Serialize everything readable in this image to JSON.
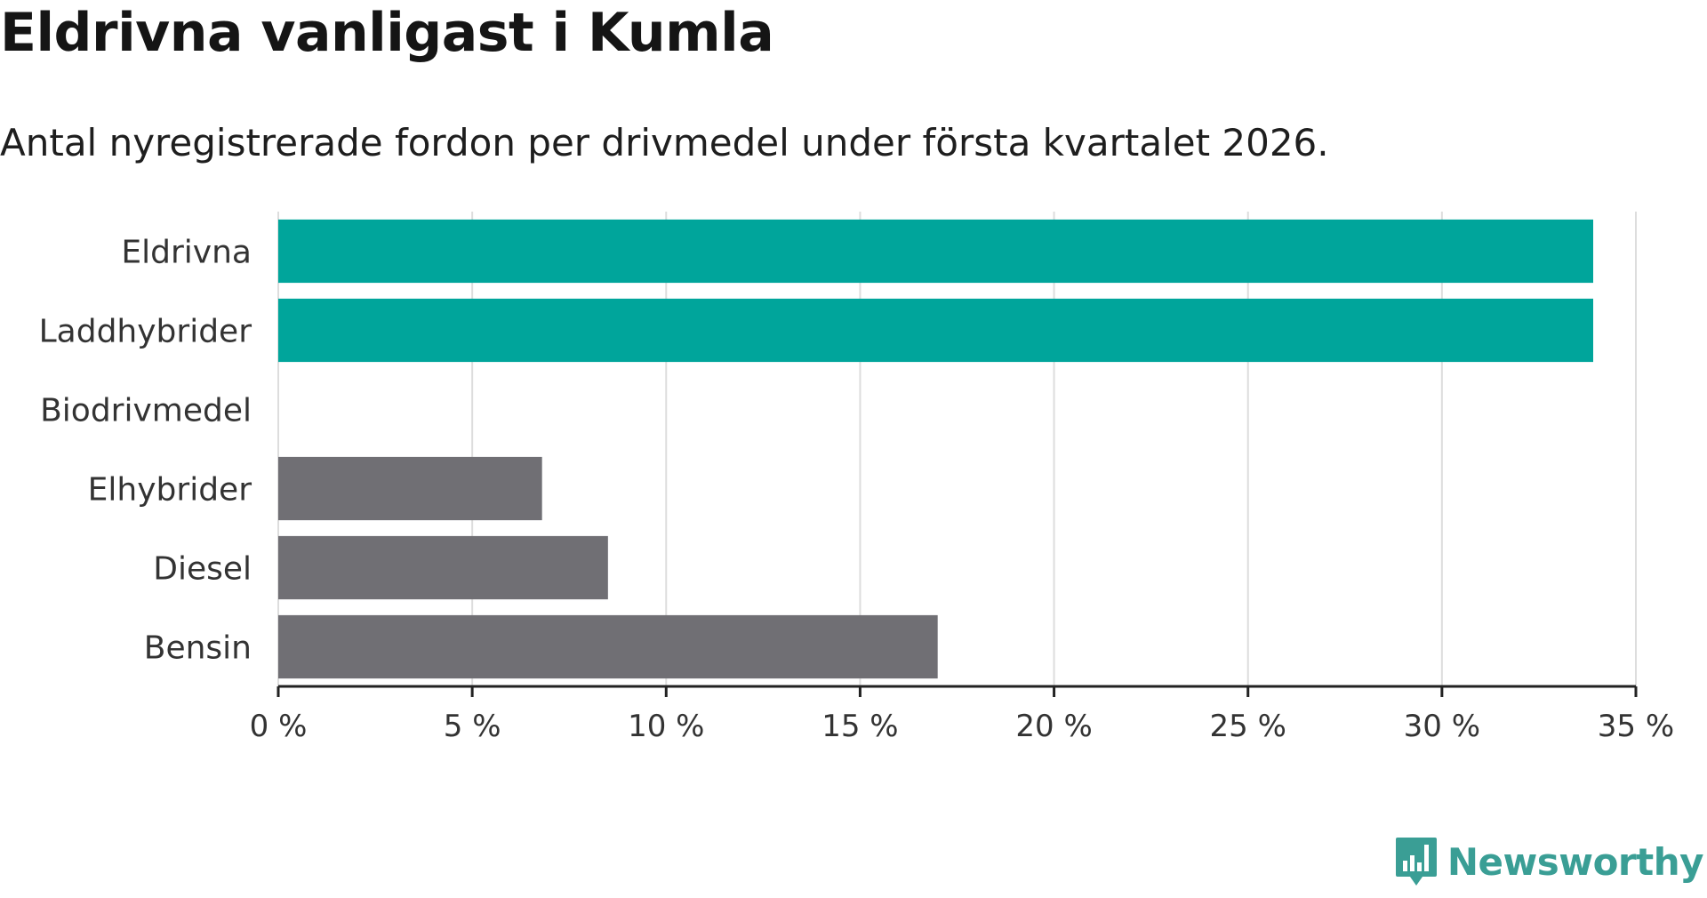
{
  "chart_data": {
    "type": "bar",
    "orientation": "horizontal",
    "title": "Eldrivna vanligast i Kumla",
    "subtitle": "Antal nyregistrerade fordon per drivmedel under första kvartalet 2026.",
    "categories": [
      "Eldrivna",
      "Laddhybrider",
      "Biodrivmedel",
      "Elhybrider",
      "Diesel",
      "Bensin"
    ],
    "values": [
      33.9,
      33.9,
      0,
      6.8,
      8.5,
      17.0
    ],
    "bar_colors": [
      "#00a59b",
      "#00a59b",
      "#00a59b",
      "#706f74",
      "#706f74",
      "#706f74"
    ],
    "xlim": [
      0,
      35
    ],
    "xticks": [
      0,
      5,
      10,
      15,
      20,
      25,
      30,
      35
    ],
    "xtick_labels": [
      "0 %",
      "5 %",
      "10 %",
      "15 %",
      "20 %",
      "25 %",
      "30 %",
      "35 %"
    ],
    "xlabel": "",
    "ylabel": "",
    "grid": true,
    "grid_color": "#dddddd",
    "axis_color": "#222222"
  },
  "brand": {
    "name": "Newsworthy",
    "icon": "newsworthy-chart-icon",
    "color": "#3a9e95"
  }
}
